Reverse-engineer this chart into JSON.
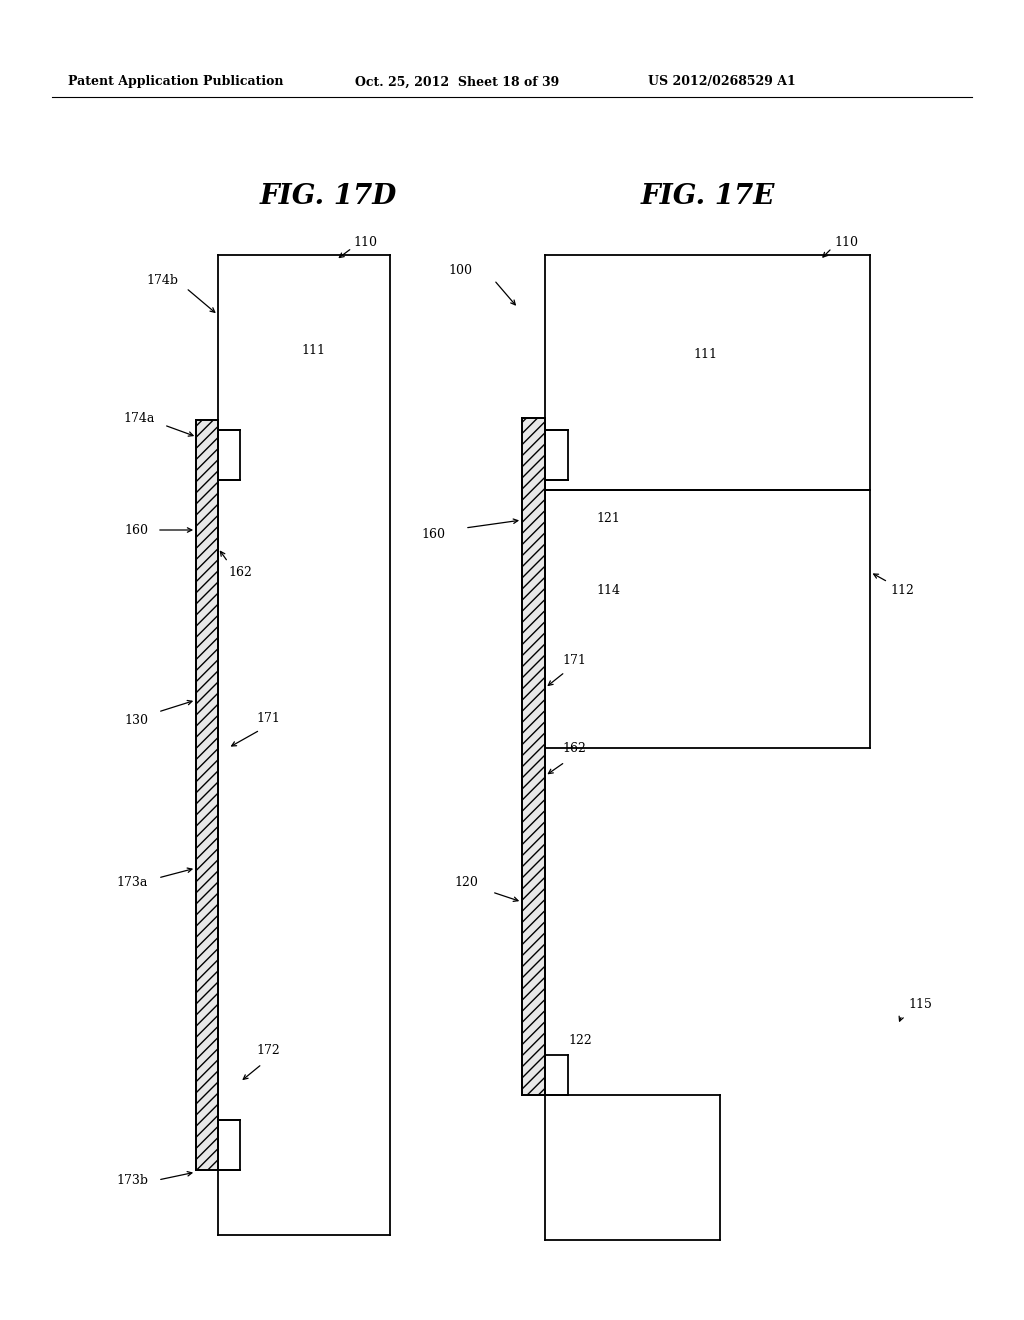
{
  "header_left": "Patent Application Publication",
  "header_center": "Oct. 25, 2012  Sheet 18 of 39",
  "header_right": "US 2012/0268529 A1",
  "fig17d_label": "FIG. 17D",
  "fig17e_label": "FIG. 17E",
  "bg_color": "#ffffff",
  "line_color": "#000000"
}
